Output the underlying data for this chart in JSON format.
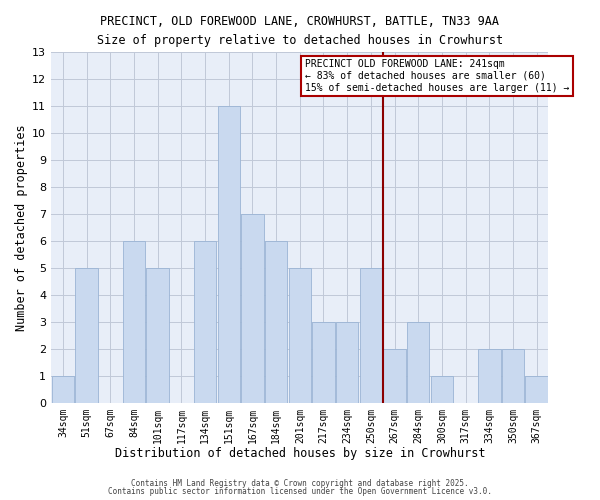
{
  "title_line1": "PRECINCT, OLD FOREWOOD LANE, CROWHURST, BATTLE, TN33 9AA",
  "title_line2": "Size of property relative to detached houses in Crowhurst",
  "xlabel": "Distribution of detached houses by size in Crowhurst",
  "ylabel": "Number of detached properties",
  "bar_labels": [
    "34sqm",
    "51sqm",
    "67sqm",
    "84sqm",
    "101sqm",
    "117sqm",
    "134sqm",
    "151sqm",
    "167sqm",
    "184sqm",
    "201sqm",
    "217sqm",
    "234sqm",
    "250sqm",
    "267sqm",
    "284sqm",
    "300sqm",
    "317sqm",
    "334sqm",
    "350sqm",
    "367sqm"
  ],
  "bar_values": [
    1,
    5,
    0,
    6,
    5,
    0,
    6,
    11,
    7,
    6,
    5,
    3,
    3,
    5,
    2,
    3,
    1,
    0,
    2,
    2,
    1
  ],
  "bar_color": "#c9d9ef",
  "bar_edge_color": "#9ab4d4",
  "vline_x_index": 13.5,
  "vline_color": "#8b0000",
  "ylim": [
    0,
    13
  ],
  "yticks": [
    0,
    1,
    2,
    3,
    4,
    5,
    6,
    7,
    8,
    9,
    10,
    11,
    12,
    13
  ],
  "annotation_title": "PRECINCT OLD FOREWOOD LANE: 241sqm",
  "annotation_line2": "← 83% of detached houses are smaller (60)",
  "annotation_line3": "15% of semi-detached houses are larger (11) →",
  "footer_line1": "Contains HM Land Registry data © Crown copyright and database right 2025.",
  "footer_line2": "Contains public sector information licensed under the Open Government Licence v3.0.",
  "bg_color": "#ffffff",
  "plot_bg_color": "#e8eef8",
  "grid_color": "#c0c8d8"
}
